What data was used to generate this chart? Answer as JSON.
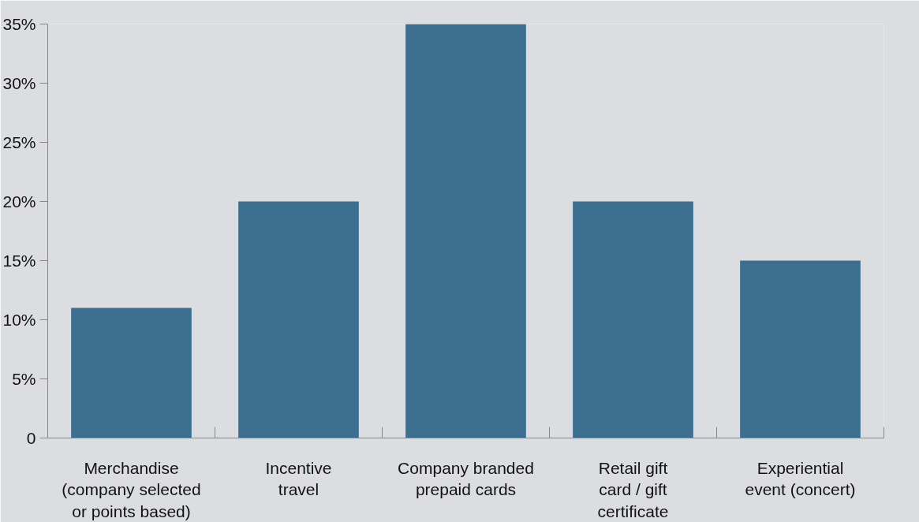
{
  "chart_data": {
    "type": "bar",
    "categories": [
      "Merchandise\n(company selected\nor points based)",
      "Incentive\ntravel",
      "Company branded\nprepaid cards",
      "Retail gift\ncard / gift\ncertificate",
      "Experiential\nevent (concert)"
    ],
    "values": [
      11,
      20,
      35,
      20,
      15
    ],
    "color": "#3b6e8f",
    "ylim": [
      0,
      35
    ],
    "yticks": [
      {
        "value": 0,
        "label": "0"
      },
      {
        "value": 5,
        "label": "5%"
      },
      {
        "value": 10,
        "label": "10%"
      },
      {
        "value": 15,
        "label": "15%"
      },
      {
        "value": 20,
        "label": "20%"
      },
      {
        "value": 25,
        "label": "25%"
      },
      {
        "value": 30,
        "label": "30%"
      },
      {
        "value": 35,
        "label": "35%"
      }
    ],
    "grid": false
  }
}
